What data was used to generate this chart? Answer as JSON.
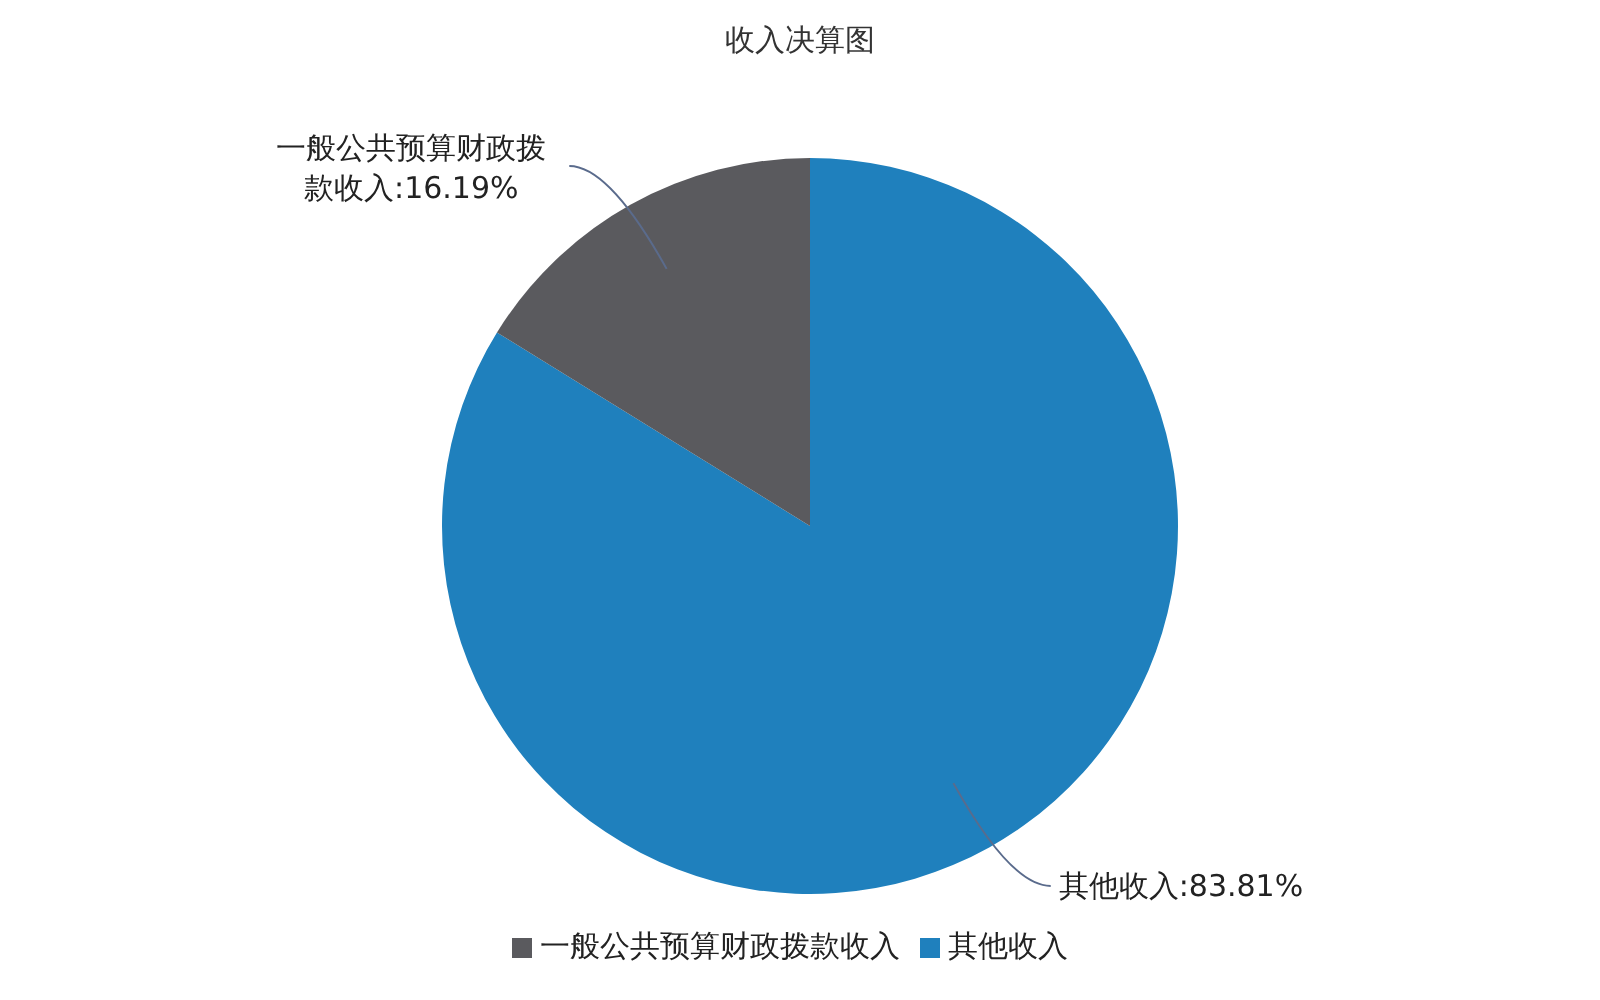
{
  "chart_data": {
    "type": "pie",
    "title": "收入决算图",
    "categories": [
      "其他收入",
      "一般公共预算财政拨款收入"
    ],
    "values": [
      83.81,
      16.19
    ],
    "colors": [
      "#1f80bd",
      "#5a5a5e"
    ],
    "value_labels": [
      "其他收入:83.81%",
      "一般公共预算财政拨款收入:16.19%"
    ],
    "legend": "bottom"
  }
}
